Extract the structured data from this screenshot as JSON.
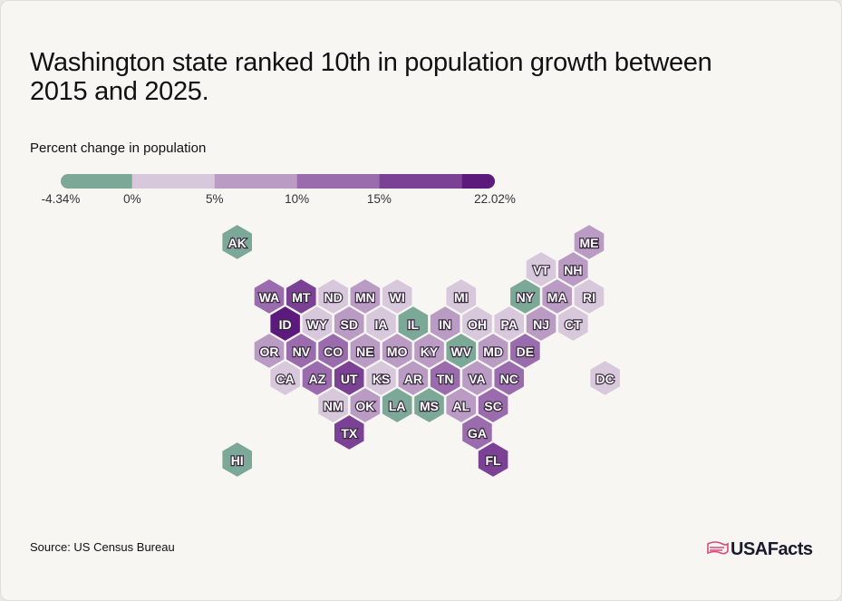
{
  "chart_data": {
    "type": "hexmap",
    "title": [
      "Washington state ranked 10th in population growth between",
      "2015 and 2025."
    ],
    "legend": {
      "title": "Percent change in population",
      "bins": [
        -4.34,
        0,
        5,
        10,
        15,
        20,
        22.02
      ],
      "colors": [
        "#7ba897",
        "#d7c8db",
        "#b99bc4",
        "#9b6cad",
        "#7b4195",
        "#5c1a7c"
      ],
      "ticks": [
        {
          "value": -4.34,
          "label": "-4.34%"
        },
        {
          "value": 0,
          "label": "0%"
        },
        {
          "value": 5,
          "label": "5%"
        },
        {
          "value": 10,
          "label": "10%"
        },
        {
          "value": 15,
          "label": "15%"
        },
        {
          "value": 22.02,
          "label": "22.02%"
        }
      ]
    },
    "states": [
      {
        "label": "AK",
        "color": "#7ba897"
      },
      {
        "label": "ME",
        "color": "#b99bc4"
      },
      {
        "label": "VT",
        "color": "#d7c8db"
      },
      {
        "label": "NH",
        "color": "#b99bc4"
      },
      {
        "label": "WA",
        "color": "#9b6cad"
      },
      {
        "label": "MT",
        "color": "#7b4195"
      },
      {
        "label": "ND",
        "color": "#d7c8db"
      },
      {
        "label": "MN",
        "color": "#b99bc4"
      },
      {
        "label": "WI",
        "color": "#d7c8db"
      },
      {
        "label": "MI",
        "color": "#d7c8db"
      },
      {
        "label": "NY",
        "color": "#7ba897"
      },
      {
        "label": "MA",
        "color": "#b99bc4"
      },
      {
        "label": "RI",
        "color": "#d7c8db"
      },
      {
        "label": "ID",
        "color": "#5c1a7c"
      },
      {
        "label": "WY",
        "color": "#d7c8db"
      },
      {
        "label": "SD",
        "color": "#b99bc4"
      },
      {
        "label": "IA",
        "color": "#d7c8db"
      },
      {
        "label": "IL",
        "color": "#7ba897"
      },
      {
        "label": "IN",
        "color": "#b99bc4"
      },
      {
        "label": "OH",
        "color": "#d7c8db"
      },
      {
        "label": "PA",
        "color": "#d7c8db"
      },
      {
        "label": "NJ",
        "color": "#b99bc4"
      },
      {
        "label": "CT",
        "color": "#d7c8db"
      },
      {
        "label": "OR",
        "color": "#b99bc4"
      },
      {
        "label": "NV",
        "color": "#9b6cad"
      },
      {
        "label": "CO",
        "color": "#9b6cad"
      },
      {
        "label": "NE",
        "color": "#b99bc4"
      },
      {
        "label": "MO",
        "color": "#b99bc4"
      },
      {
        "label": "KY",
        "color": "#b99bc4"
      },
      {
        "label": "WV",
        "color": "#7ba897"
      },
      {
        "label": "MD",
        "color": "#b99bc4"
      },
      {
        "label": "DE",
        "color": "#9b6cad"
      },
      {
        "label": "CA",
        "color": "#d7c8db"
      },
      {
        "label": "AZ",
        "color": "#9b6cad"
      },
      {
        "label": "UT",
        "color": "#7b4195"
      },
      {
        "label": "KS",
        "color": "#d7c8db"
      },
      {
        "label": "AR",
        "color": "#b99bc4"
      },
      {
        "label": "TN",
        "color": "#9b6cad"
      },
      {
        "label": "VA",
        "color": "#b99bc4"
      },
      {
        "label": "NC",
        "color": "#9b6cad"
      },
      {
        "label": "DC",
        "color": "#d7c8db"
      },
      {
        "label": "NM",
        "color": "#d7c8db"
      },
      {
        "label": "OK",
        "color": "#b99bc4"
      },
      {
        "label": "LA",
        "color": "#7ba897"
      },
      {
        "label": "MS",
        "color": "#7ba897"
      },
      {
        "label": "AL",
        "color": "#b99bc4"
      },
      {
        "label": "SC",
        "color": "#9b6cad"
      },
      {
        "label": "TX",
        "color": "#7b4195"
      },
      {
        "label": "GA",
        "color": "#9b6cad"
      },
      {
        "label": "HI",
        "color": "#7ba897"
      },
      {
        "label": "FL",
        "color": "#7b4195"
      }
    ],
    "source": "Source: US Census Bureau",
    "logo": "USAFacts"
  }
}
